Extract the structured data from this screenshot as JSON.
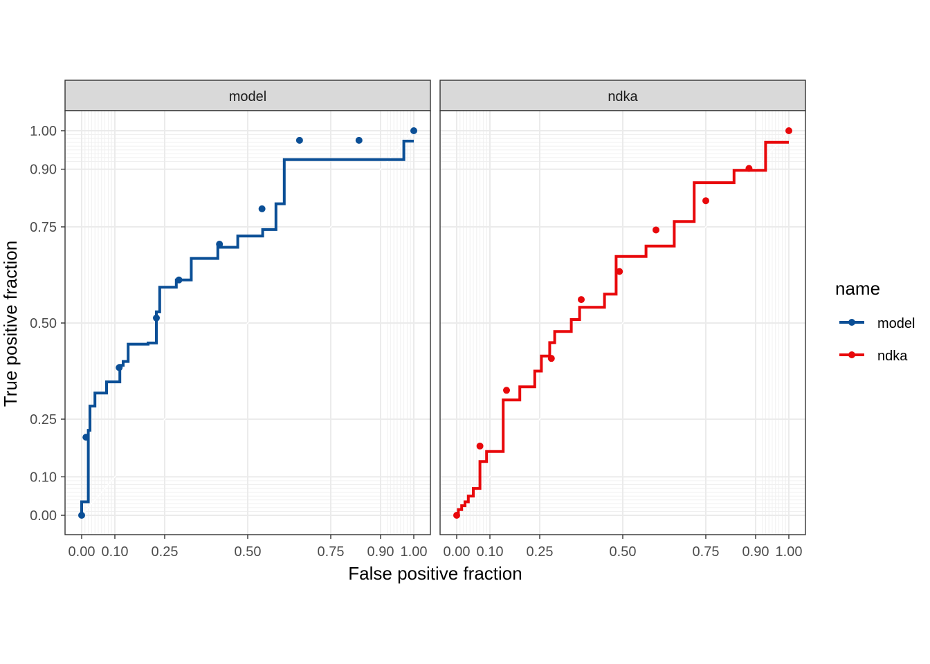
{
  "chart_data": {
    "type": "line",
    "xlabel": "False positive fraction",
    "ylabel": "True positive fraction",
    "xlim": [
      0,
      1
    ],
    "ylim": [
      0,
      1
    ],
    "x_ticks": [
      0,
      0.1,
      0.25,
      0.5,
      0.75,
      0.9,
      1
    ],
    "y_ticks": [
      0,
      0.1,
      0.25,
      0.5,
      0.75,
      0.9,
      1
    ],
    "x_tick_labels": [
      "0.00",
      "0.10",
      "0.25",
      "0.50",
      "0.75",
      "0.90",
      "1.00"
    ],
    "y_tick_labels": [
      "0.00",
      "0.10",
      "0.25",
      "0.50",
      "0.75",
      "0.90",
      "1.00"
    ],
    "minor_grid_breaks": [
      0.01,
      0.02,
      0.03,
      0.04,
      0.05,
      0.06,
      0.07,
      0.08,
      0.09,
      0.92,
      0.93,
      0.94,
      0.95,
      0.96,
      0.97,
      0.98,
      0.99
    ],
    "grid": true,
    "legend": {
      "title": "name",
      "position": "right",
      "entries": [
        "model",
        "ndka"
      ]
    },
    "panels": [
      {
        "strip": "model",
        "color": "#0b4f96",
        "points": [
          [
            0.0,
            0.0
          ],
          [
            0.0,
            0.035
          ],
          [
            0.02,
            0.035
          ],
          [
            0.02,
            0.221
          ],
          [
            0.025,
            0.221
          ],
          [
            0.025,
            0.284
          ],
          [
            0.04,
            0.284
          ],
          [
            0.04,
            0.318
          ],
          [
            0.075,
            0.318
          ],
          [
            0.075,
            0.347
          ],
          [
            0.115,
            0.347
          ],
          [
            0.115,
            0.39
          ],
          [
            0.125,
            0.39
          ],
          [
            0.125,
            0.4
          ],
          [
            0.14,
            0.4
          ],
          [
            0.14,
            0.445
          ],
          [
            0.2,
            0.445
          ],
          [
            0.2,
            0.448
          ],
          [
            0.225,
            0.448
          ],
          [
            0.225,
            0.529
          ],
          [
            0.235,
            0.529
          ],
          [
            0.235,
            0.593
          ],
          [
            0.285,
            0.593
          ],
          [
            0.285,
            0.612
          ],
          [
            0.33,
            0.612
          ],
          [
            0.33,
            0.668
          ],
          [
            0.41,
            0.668
          ],
          [
            0.41,
            0.697
          ],
          [
            0.47,
            0.697
          ],
          [
            0.47,
            0.726
          ],
          [
            0.545,
            0.726
          ],
          [
            0.545,
            0.743
          ],
          [
            0.585,
            0.743
          ],
          [
            0.585,
            0.81
          ],
          [
            0.61,
            0.81
          ],
          [
            0.61,
            0.925
          ],
          [
            0.97,
            0.925
          ],
          [
            0.97,
            0.973
          ],
          [
            1.0,
            0.973
          ]
        ],
        "markers": [
          [
            0.0,
            0.0
          ],
          [
            0.013,
            0.203
          ],
          [
            0.113,
            0.384
          ],
          [
            0.225,
            0.513
          ],
          [
            0.293,
            0.612
          ],
          [
            0.415,
            0.705
          ],
          [
            0.543,
            0.797
          ],
          [
            0.656,
            0.975
          ],
          [
            0.835,
            0.975
          ],
          [
            1.0,
            1.0
          ]
        ]
      },
      {
        "strip": "ndka",
        "color": "#e8080b",
        "points": [
          [
            0.0,
            0.0
          ],
          [
            0.005,
            0.0
          ],
          [
            0.005,
            0.015
          ],
          [
            0.015,
            0.015
          ],
          [
            0.015,
            0.025
          ],
          [
            0.025,
            0.025
          ],
          [
            0.025,
            0.035
          ],
          [
            0.035,
            0.035
          ],
          [
            0.035,
            0.05
          ],
          [
            0.05,
            0.05
          ],
          [
            0.05,
            0.07
          ],
          [
            0.07,
            0.07
          ],
          [
            0.07,
            0.14
          ],
          [
            0.09,
            0.14
          ],
          [
            0.09,
            0.166
          ],
          [
            0.14,
            0.166
          ],
          [
            0.14,
            0.3
          ],
          [
            0.19,
            0.3
          ],
          [
            0.19,
            0.334
          ],
          [
            0.235,
            0.334
          ],
          [
            0.235,
            0.375
          ],
          [
            0.255,
            0.375
          ],
          [
            0.255,
            0.414
          ],
          [
            0.28,
            0.414
          ],
          [
            0.28,
            0.449
          ],
          [
            0.295,
            0.449
          ],
          [
            0.295,
            0.478
          ],
          [
            0.345,
            0.478
          ],
          [
            0.345,
            0.509
          ],
          [
            0.37,
            0.509
          ],
          [
            0.37,
            0.541
          ],
          [
            0.445,
            0.541
          ],
          [
            0.445,
            0.575
          ],
          [
            0.48,
            0.575
          ],
          [
            0.48,
            0.673
          ],
          [
            0.57,
            0.673
          ],
          [
            0.57,
            0.7
          ],
          [
            0.655,
            0.7
          ],
          [
            0.655,
            0.764
          ],
          [
            0.715,
            0.764
          ],
          [
            0.715,
            0.865
          ],
          [
            0.835,
            0.865
          ],
          [
            0.835,
            0.897
          ],
          [
            0.93,
            0.897
          ],
          [
            0.93,
            0.97
          ],
          [
            1.0,
            0.97
          ]
        ],
        "markers": [
          [
            0.0,
            0.0
          ],
          [
            0.07,
            0.18
          ],
          [
            0.15,
            0.325
          ],
          [
            0.285,
            0.408
          ],
          [
            0.375,
            0.561
          ],
          [
            0.49,
            0.634
          ],
          [
            0.6,
            0.742
          ],
          [
            0.75,
            0.818
          ],
          [
            0.88,
            0.902
          ],
          [
            1.0,
            1.0
          ]
        ]
      }
    ]
  }
}
